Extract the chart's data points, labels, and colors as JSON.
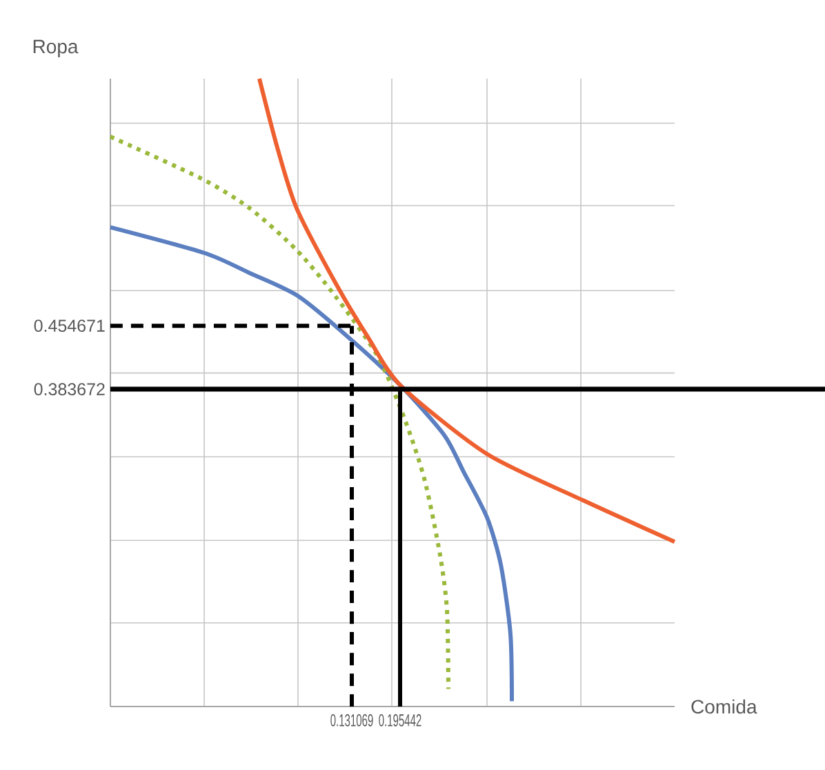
{
  "chart_data": {
    "type": "line",
    "xlabel": "Comida",
    "ylabel": "Ropa",
    "xlim": [
      -0.1908,
      0.5614
    ],
    "ylim": [
      0.0287,
      0.7311
    ],
    "xticks": [
      {
        "value": -0.0657,
        "label": null
      },
      {
        "value": 0.0593,
        "label": null
      },
      {
        "value": 0.131069,
        "label": "0.131069"
      },
      {
        "value": 0.1844,
        "label": null
      },
      {
        "value": 0.195442,
        "label": "0.195442"
      },
      {
        "value": 0.3113,
        "label": null
      },
      {
        "value": 0.4364,
        "label": null
      }
    ],
    "yticks": [
      {
        "value": 0.1223,
        "label": null
      },
      {
        "value": 0.2145,
        "label": null
      },
      {
        "value": 0.3081,
        "label": null
      },
      {
        "value": 0.383672,
        "label": "0.383672"
      },
      {
        "value": 0.4018,
        "label": null
      },
      {
        "value": 0.454671,
        "label": "0.454671"
      },
      {
        "value": 0.4939,
        "label": null
      },
      {
        "value": 0.5891,
        "label": null
      },
      {
        "value": 0.6813,
        "label": null
      }
    ],
    "grid": true,
    "series": [
      {
        "color": "#5b7fc0",
        "line_style": "solid",
        "x": [
          -0.1908,
          -0.0657,
          -0.005,
          0.0593,
          0.1274,
          0.1973,
          0.2543,
          0.28,
          0.3113,
          0.3297,
          0.3425,
          0.3444
        ],
        "values": [
          0.5649,
          0.5362,
          0.5136,
          0.4879,
          0.4411,
          0.3867,
          0.3323,
          0.2915,
          0.2402,
          0.1873,
          0.1103,
          0.0347
        ]
      },
      {
        "color": "#9ab83a",
        "line_style": "dotted",
        "x": [
          -0.1908,
          -0.0694,
          -0.005,
          0.0575,
          0.109,
          0.166,
          0.2028,
          0.2285,
          0.2488,
          0.258,
          0.2598
        ],
        "values": [
          0.6662,
          0.6193,
          0.5861,
          0.5393,
          0.4879,
          0.4199,
          0.3474,
          0.281,
          0.1979,
          0.136,
          0.0483
        ]
      },
      {
        "color": "#ee6030",
        "line_style": "solid",
        "x": [
          0.0078,
          0.0317,
          0.0575,
          0.109,
          0.1531,
          0.1973,
          0.3113,
          0.4382,
          0.5614
        ],
        "values": [
          0.7311,
          0.6541,
          0.5861,
          0.503,
          0.4411,
          0.3867,
          0.3112,
          0.2598,
          0.213
        ]
      },
      {
        "color": "#000000",
        "line_style": "dashed",
        "x": [
          -0.1908,
          0.131069
        ],
        "values": [
          0.454671,
          0.454671
        ]
      },
      {
        "color": "#000000",
        "line_style": "dashed",
        "x": [
          0.131069,
          0.131069
        ],
        "values": [
          0.0287,
          0.454671
        ]
      },
      {
        "color": "#000000",
        "line_style": "solid",
        "x": [
          0.195442,
          0.195442
        ],
        "values": [
          0.0287,
          0.383672
        ]
      }
    ],
    "ref_lines": [
      {
        "axis": "y",
        "value": 0.383672,
        "color": "#000000",
        "line_style": "solid"
      }
    ]
  }
}
